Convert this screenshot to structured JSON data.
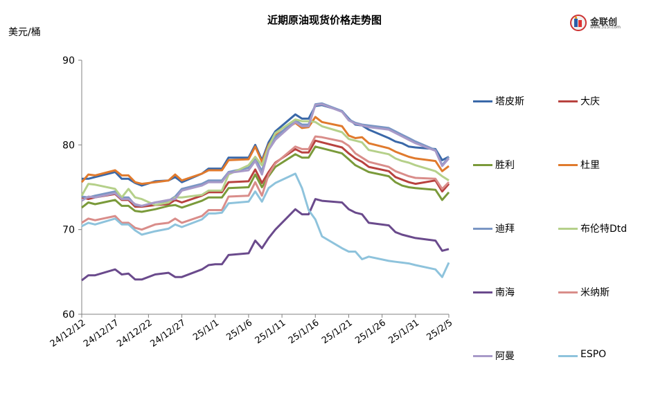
{
  "title": "近期原油现货价格走势图",
  "unit_label": "美元/桶",
  "logo": {
    "name": "金联创",
    "sub": "www.315i.com"
  },
  "chart_data": {
    "type": "line",
    "title": "近期原油现货价格走势图",
    "ylabel": "美元/桶",
    "xlabel": "",
    "ylim": [
      60,
      90
    ],
    "yticks": [
      60,
      70,
      80,
      90
    ],
    "grid": false,
    "legend_position": "right",
    "x_tick_labels": [
      "24/12/12",
      "24/12/17",
      "24/12/22",
      "24/12/27",
      "25/1/1",
      "25/1/6",
      "25/1/11",
      "25/1/16",
      "25/1/21",
      "25/1/26",
      "25/1/31",
      "25/2/5"
    ],
    "x_tick_positions": [
      0,
      5,
      10,
      15,
      20,
      25,
      30,
      35,
      40,
      45,
      50,
      55
    ],
    "x": [
      0,
      1,
      2,
      5,
      6,
      7,
      8,
      9,
      11,
      13,
      14,
      15,
      18,
      19,
      20,
      21,
      22,
      25,
      26,
      27,
      28,
      29,
      32,
      33,
      34,
      35,
      36,
      39,
      40,
      41,
      42,
      43,
      46,
      47,
      48,
      49,
      50,
      53,
      54,
      55
    ],
    "series": [
      {
        "name": "塔皮斯",
        "color": "#3a68a8",
        "values": [
          76.0,
          76.0,
          76.2,
          76.8,
          76.0,
          76.0,
          75.5,
          75.2,
          75.7,
          75.8,
          76.2,
          75.6,
          76.6,
          77.2,
          77.2,
          77.2,
          78.5,
          78.5,
          80.0,
          78.2,
          80.3,
          81.6,
          83.6,
          83.1,
          83.1,
          84.6,
          84.7,
          84.0,
          83.1,
          82.4,
          82.3,
          81.8,
          80.8,
          80.4,
          80.2,
          79.8,
          79.7,
          79.5,
          78.2,
          78.6
        ]
      },
      {
        "name": "大庆",
        "color": "#b8423f",
        "values": [
          73.8,
          73.6,
          73.8,
          74.2,
          73.5,
          73.5,
          72.7,
          72.7,
          72.9,
          73.0,
          73.5,
          73.2,
          74.0,
          74.4,
          74.4,
          74.4,
          75.6,
          75.7,
          77.1,
          75.5,
          76.8,
          77.9,
          79.5,
          79.1,
          79.1,
          80.5,
          80.3,
          79.7,
          79.0,
          78.4,
          78.0,
          77.4,
          76.9,
          76.2,
          75.9,
          75.6,
          75.4,
          75.8,
          74.5,
          75.4
        ]
      },
      {
        "name": "胜利",
        "color": "#7a9a3a",
        "values": [
          72.6,
          73.2,
          73.0,
          73.5,
          72.8,
          72.8,
          72.2,
          72.1,
          72.4,
          72.8,
          72.9,
          72.6,
          73.4,
          73.8,
          73.8,
          73.8,
          74.9,
          75.0,
          76.5,
          75.0,
          76.3,
          77.4,
          78.9,
          78.5,
          78.5,
          79.8,
          79.6,
          79.0,
          78.3,
          77.6,
          77.2,
          76.8,
          76.3,
          75.6,
          75.2,
          75.0,
          74.9,
          74.7,
          73.5,
          74.4
        ]
      },
      {
        "name": "杜里",
        "color": "#e07a2d",
        "values": [
          75.6,
          76.5,
          76.4,
          77.0,
          76.4,
          76.4,
          75.6,
          75.4,
          75.6,
          75.8,
          76.5,
          75.8,
          76.6,
          77.0,
          77.0,
          77.0,
          78.2,
          78.3,
          79.8,
          78.0,
          80.0,
          81.1,
          82.6,
          82.0,
          82.1,
          83.3,
          82.7,
          82.2,
          81.1,
          80.8,
          80.9,
          80.2,
          79.6,
          79.2,
          78.9,
          78.6,
          78.4,
          78.1,
          76.9,
          77.5
        ]
      },
      {
        "name": "迪拜",
        "color": "#7a96c4",
        "values": [
          73.9,
          73.8,
          74.0,
          74.5,
          73.8,
          73.8,
          72.9,
          72.8,
          73.2,
          73.4,
          73.9,
          74.8,
          75.4,
          75.8,
          75.8,
          75.8,
          76.8,
          77.3,
          78.4,
          76.9,
          79.7,
          80.9,
          82.9,
          82.4,
          82.4,
          84.8,
          84.9,
          84.0,
          83.0,
          82.6,
          82.4,
          82.3,
          82.0,
          81.6,
          81.2,
          80.8,
          80.4,
          79.4,
          77.6,
          78.6
        ]
      },
      {
        "name": "布伦特Dtd",
        "color": "#b5d08a",
        "values": [
          74.0,
          75.4,
          75.3,
          74.8,
          73.8,
          74.8,
          73.8,
          73.6,
          72.9,
          73.2,
          73.8,
          73.8,
          74.1,
          74.6,
          74.6,
          74.6,
          76.5,
          77.6,
          78.6,
          77.6,
          79.8,
          81.4,
          83.0,
          82.8,
          82.8,
          82.7,
          82.2,
          81.5,
          80.7,
          80.5,
          80.3,
          79.4,
          78.9,
          78.4,
          78.1,
          77.9,
          77.6,
          76.9,
          76.3,
          75.8
        ]
      },
      {
        "name": "南海",
        "color": "#6a4a8c",
        "values": [
          64.0,
          64.6,
          64.6,
          65.3,
          64.7,
          64.8,
          64.1,
          64.1,
          64.7,
          64.9,
          64.4,
          64.4,
          65.3,
          65.8,
          65.9,
          65.9,
          67.0,
          67.2,
          68.7,
          67.8,
          69.0,
          70.0,
          72.4,
          71.8,
          71.8,
          73.6,
          73.4,
          73.2,
          72.4,
          72.0,
          71.8,
          70.8,
          70.5,
          69.7,
          69.4,
          69.2,
          69.0,
          68.7,
          67.5,
          67.7
        ]
      },
      {
        "name": "米纳斯",
        "color": "#d98d8a",
        "values": [
          70.8,
          71.3,
          71.1,
          71.6,
          70.8,
          70.8,
          70.2,
          70.0,
          70.6,
          70.8,
          71.3,
          70.8,
          71.6,
          72.3,
          72.3,
          72.3,
          73.9,
          74.0,
          75.6,
          74.0,
          76.5,
          77.8,
          79.8,
          79.5,
          79.5,
          81.0,
          80.9,
          80.4,
          79.9,
          79.0,
          78.5,
          78.0,
          77.4,
          76.9,
          76.6,
          76.3,
          76.1,
          76.0,
          74.8,
          75.6
        ]
      },
      {
        "name": "阿曼",
        "color": "#a89ac8",
        "values": [
          73.4,
          73.9,
          73.8,
          74.3,
          73.6,
          73.6,
          73.0,
          72.8,
          73.2,
          73.5,
          73.6,
          74.6,
          75.2,
          75.6,
          75.6,
          75.6,
          76.7,
          77.0,
          78.1,
          76.5,
          79.4,
          80.6,
          82.7,
          82.2,
          82.2,
          84.7,
          84.8,
          83.9,
          82.9,
          82.5,
          82.3,
          82.1,
          81.8,
          81.4,
          81.0,
          80.6,
          80.2,
          79.3,
          77.5,
          78.4
        ]
      },
      {
        "name": "ESPO",
        "color": "#8ec3dc",
        "values": [
          70.4,
          70.8,
          70.6,
          71.3,
          70.6,
          70.6,
          69.9,
          69.4,
          69.8,
          70.1,
          70.6,
          70.3,
          71.2,
          71.9,
          71.9,
          72.0,
          73.1,
          73.3,
          74.5,
          73.3,
          74.9,
          75.5,
          76.6,
          74.9,
          72.3,
          71.2,
          69.2,
          67.8,
          67.4,
          67.4,
          66.5,
          66.8,
          66.3,
          66.2,
          66.1,
          66.0,
          65.8,
          65.3,
          64.4,
          66.1
        ]
      }
    ]
  }
}
